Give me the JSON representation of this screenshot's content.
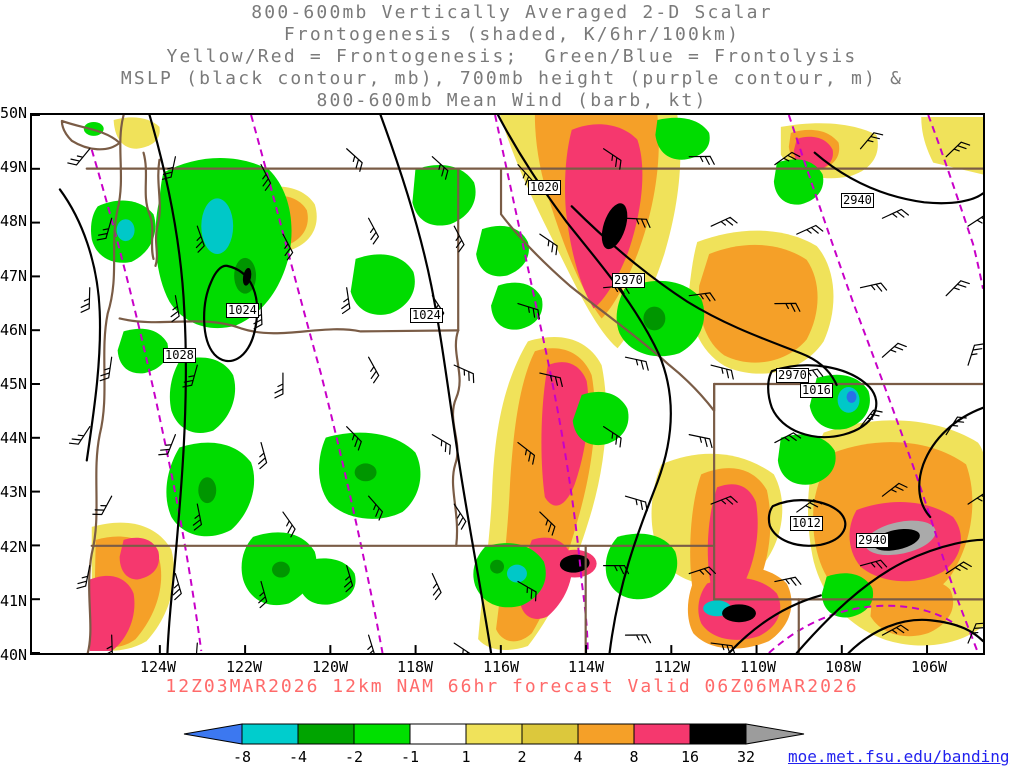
{
  "title": {
    "lines": [
      "800-600mb Vertically Averaged 2-D Scalar",
      "Frontogenesis (shaded, K/6hr/100km)",
      "Yellow/Red = Frontogenesis;  Green/Blue = Frontolysis",
      "MSLP (black contour, mb), 700mb height (purple contour, m) &",
      "800-600mb Mean Wind (barb, kt)"
    ]
  },
  "axes": {
    "lat_labels": [
      "50N",
      "49N",
      "48N",
      "47N",
      "46N",
      "45N",
      "44N",
      "43N",
      "42N",
      "41N",
      "40N"
    ],
    "lon_labels": [
      "124W",
      "122W",
      "120W",
      "118W",
      "116W",
      "114W",
      "112W",
      "110W",
      "108W",
      "106W"
    ]
  },
  "contour_labels": [
    {
      "text": "1020"
    },
    {
      "text": "2940"
    },
    {
      "text": "2970"
    },
    {
      "text": "1024"
    },
    {
      "text": "1024"
    },
    {
      "text": "1028"
    },
    {
      "text": "2970"
    },
    {
      "text": "1016"
    },
    {
      "text": "1012"
    },
    {
      "text": "2940"
    }
  ],
  "caption": "12Z03MAR2026 12km NAM 66hr forecast Valid 06Z06MAR2026",
  "colorbar": {
    "ticks": [
      "-8",
      "-4",
      "-2",
      "-1",
      "1",
      "2",
      "4",
      "8",
      "16",
      "32"
    ],
    "segment_colors": [
      "#00CDCD",
      "#00A400",
      "#00E000",
      "#FFFFFF",
      "#F0E25A",
      "#DCC83C",
      "#F5A028",
      "#F5386E",
      "#000000"
    ],
    "arrow_left": "#3C78F0",
    "arrow_right": "#9C9C9C"
  },
  "link": "moe.met.fsu.edu/banding",
  "colors": {
    "height_contour_purple": "#C800C8",
    "state_border_brown": "#7A5C46",
    "mslp_contour_black": "#000000",
    "caption_red": "#FF6A6A",
    "title_gray": "#7A7A7A"
  }
}
